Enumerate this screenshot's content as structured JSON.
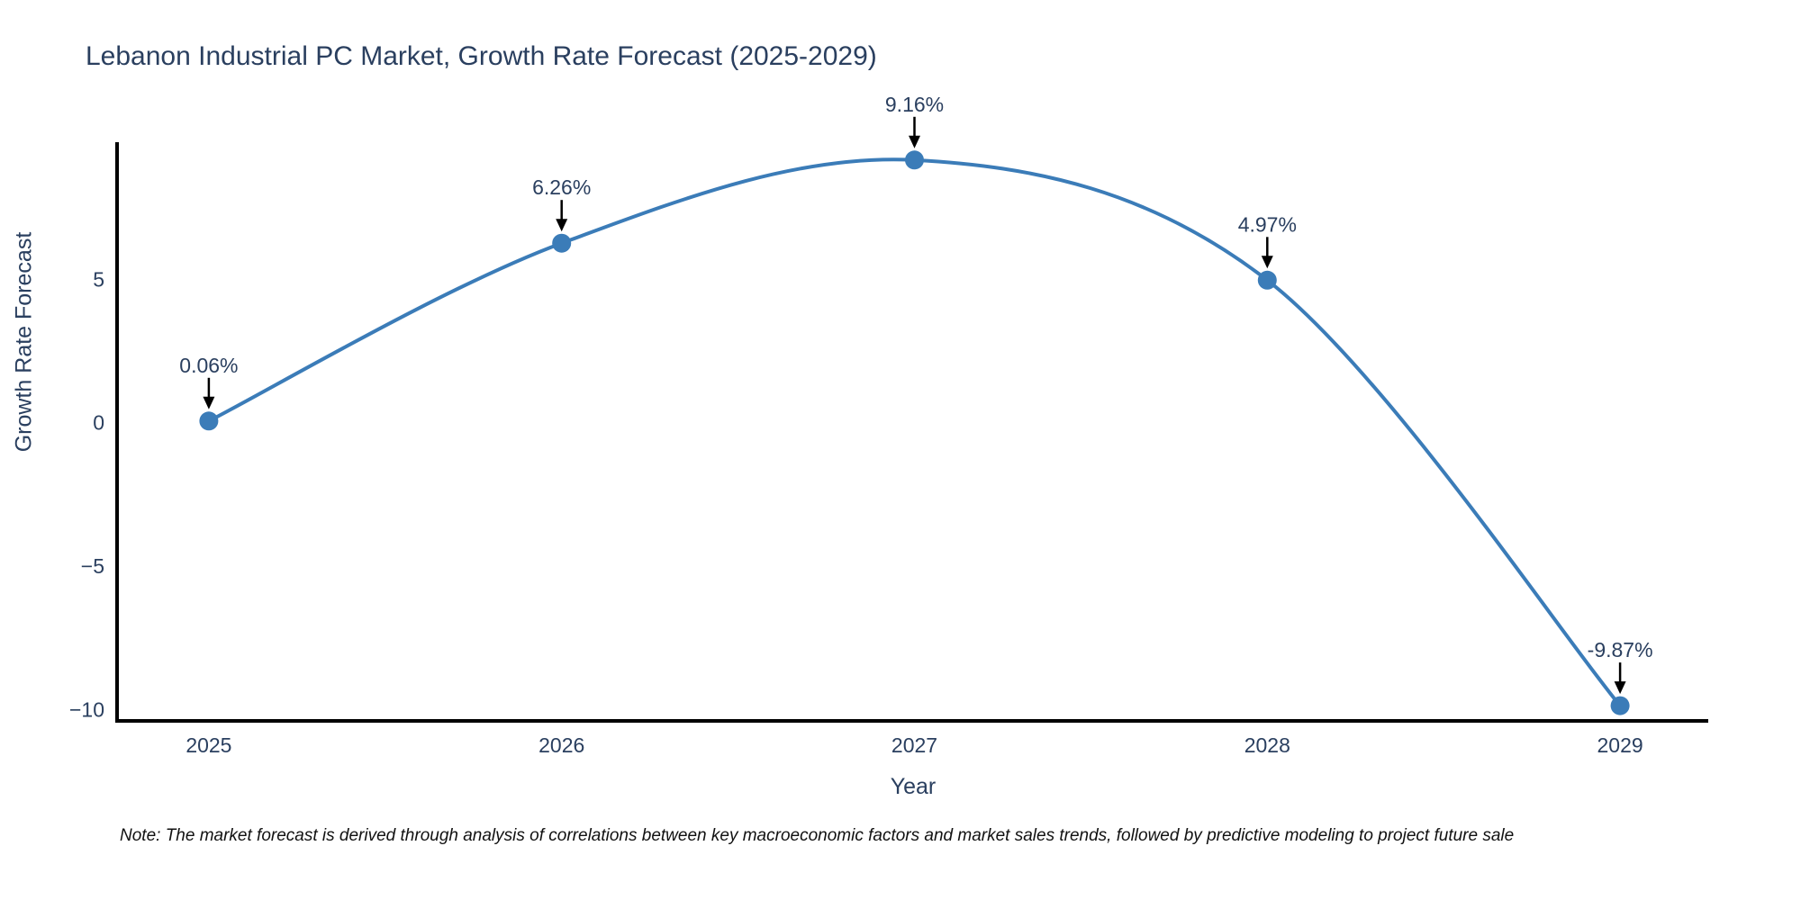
{
  "note": "Note: The market forecast is derived through analysis of correlations between key macroeconomic factors and market sales trends, followed by predictive modeling to project future sale",
  "chart_data": {
    "type": "line",
    "line_shape": "spline",
    "title": "Lebanon Industrial PC Market, Growth Rate Forecast (2025-2029)",
    "xlabel": "Year",
    "ylabel": "Growth Rate Forecast",
    "x": [
      2025,
      2026,
      2027,
      2028,
      2029
    ],
    "y": [
      0.06,
      6.26,
      9.16,
      4.97,
      -9.87
    ],
    "point_labels": [
      "0.06%",
      "6.26%",
      "9.16%",
      "4.97%",
      "-9.87%"
    ],
    "xticks": [
      {
        "value": 2025,
        "label": "2025"
      },
      {
        "value": 2026,
        "label": "2026"
      },
      {
        "value": 2027,
        "label": "2027"
      },
      {
        "value": 2028,
        "label": "2028"
      },
      {
        "value": 2029,
        "label": "2029"
      }
    ],
    "yticks": [
      {
        "value": 5,
        "label": "5"
      },
      {
        "value": 0,
        "label": "0"
      },
      {
        "value": -5,
        "label": "−5"
      },
      {
        "value": -10,
        "label": "−10"
      }
    ],
    "xlim": [
      2024.74,
      2029.25
    ],
    "ylim": [
      -10.4,
      9.72
    ],
    "grid": false,
    "legend": false,
    "colors": {
      "line": "#3b7cb8",
      "marker": "#3b7cb8",
      "axis_line": "#000000",
      "text": "#2a3f5f",
      "arrow": "#000000",
      "note_text": "#111111",
      "background": "#ffffff"
    }
  }
}
